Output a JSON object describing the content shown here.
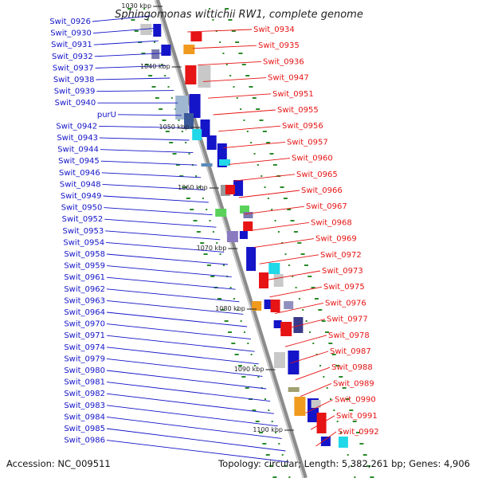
{
  "title": "Sphingomonas wittichii RW1, complete genome",
  "accession": "Accession: NC_009511",
  "topology": "Topology: circular; Length: 5,382,261 bp; Genes: 4,906",
  "kbp_labels": [
    "1030 kbp",
    "1040 kbp",
    "1050 kbp",
    "1060 kbp",
    "1070 kbp",
    "1080 kbp",
    "1090 kbp",
    "1100 kbp"
  ],
  "left_genes": [
    "Swit_0926",
    "Swit_0930",
    "Swit_0931",
    "Swit_0932",
    "Swit_0937",
    "Swit_0938",
    "Swit_0939",
    "Swit_0940",
    "purU",
    "Swit_0942",
    "Swit_0943",
    "Swit_0944",
    "Swit_0945",
    "Swit_0946",
    "Swit_0948",
    "Swit_0949",
    "Swit_0950",
    "Swit_0952",
    "Swit_0953",
    "Swit_0954",
    "Swit_0958",
    "Swit_0959",
    "Swit_0961",
    "Swit_0962",
    "Swit_0963",
    "Swit_0964",
    "Swit_0970",
    "Swit_0971",
    "Swit_0974",
    "Swit_0979",
    "Swit_0980",
    "Swit_0981",
    "Swit_0982",
    "Swit_0983",
    "Swit_0984",
    "Swit_0985",
    "Swit_0986"
  ],
  "right_genes": [
    "Swit_0934",
    "Swit_0935",
    "Swit_0936",
    "Swit_0947",
    "Swit_0951",
    "Swit_0955",
    "Swit_0956",
    "Swit_0957",
    "Swit_0960",
    "Swit_0965",
    "Swit_0966",
    "Swit_0967",
    "Swit_0968",
    "Swit_0969",
    "Swit_0972",
    "Swit_0973",
    "Swit_0975",
    "Swit_0976",
    "Swit_0977",
    "Swit_0978",
    "Swit_0987",
    "Swit_0988",
    "Swit_0989",
    "Swit_0990",
    "Swit_0991",
    "Swit_0992"
  ],
  "colors": {
    "forward": "#1414c8",
    "reverse": "#e61414",
    "backbone": "#9a9a9a",
    "tick": "#2a8a2a",
    "accent_orange": "#f09a1e",
    "accent_cyan": "#20d8e8",
    "accent_green": "#5ad25a"
  }
}
